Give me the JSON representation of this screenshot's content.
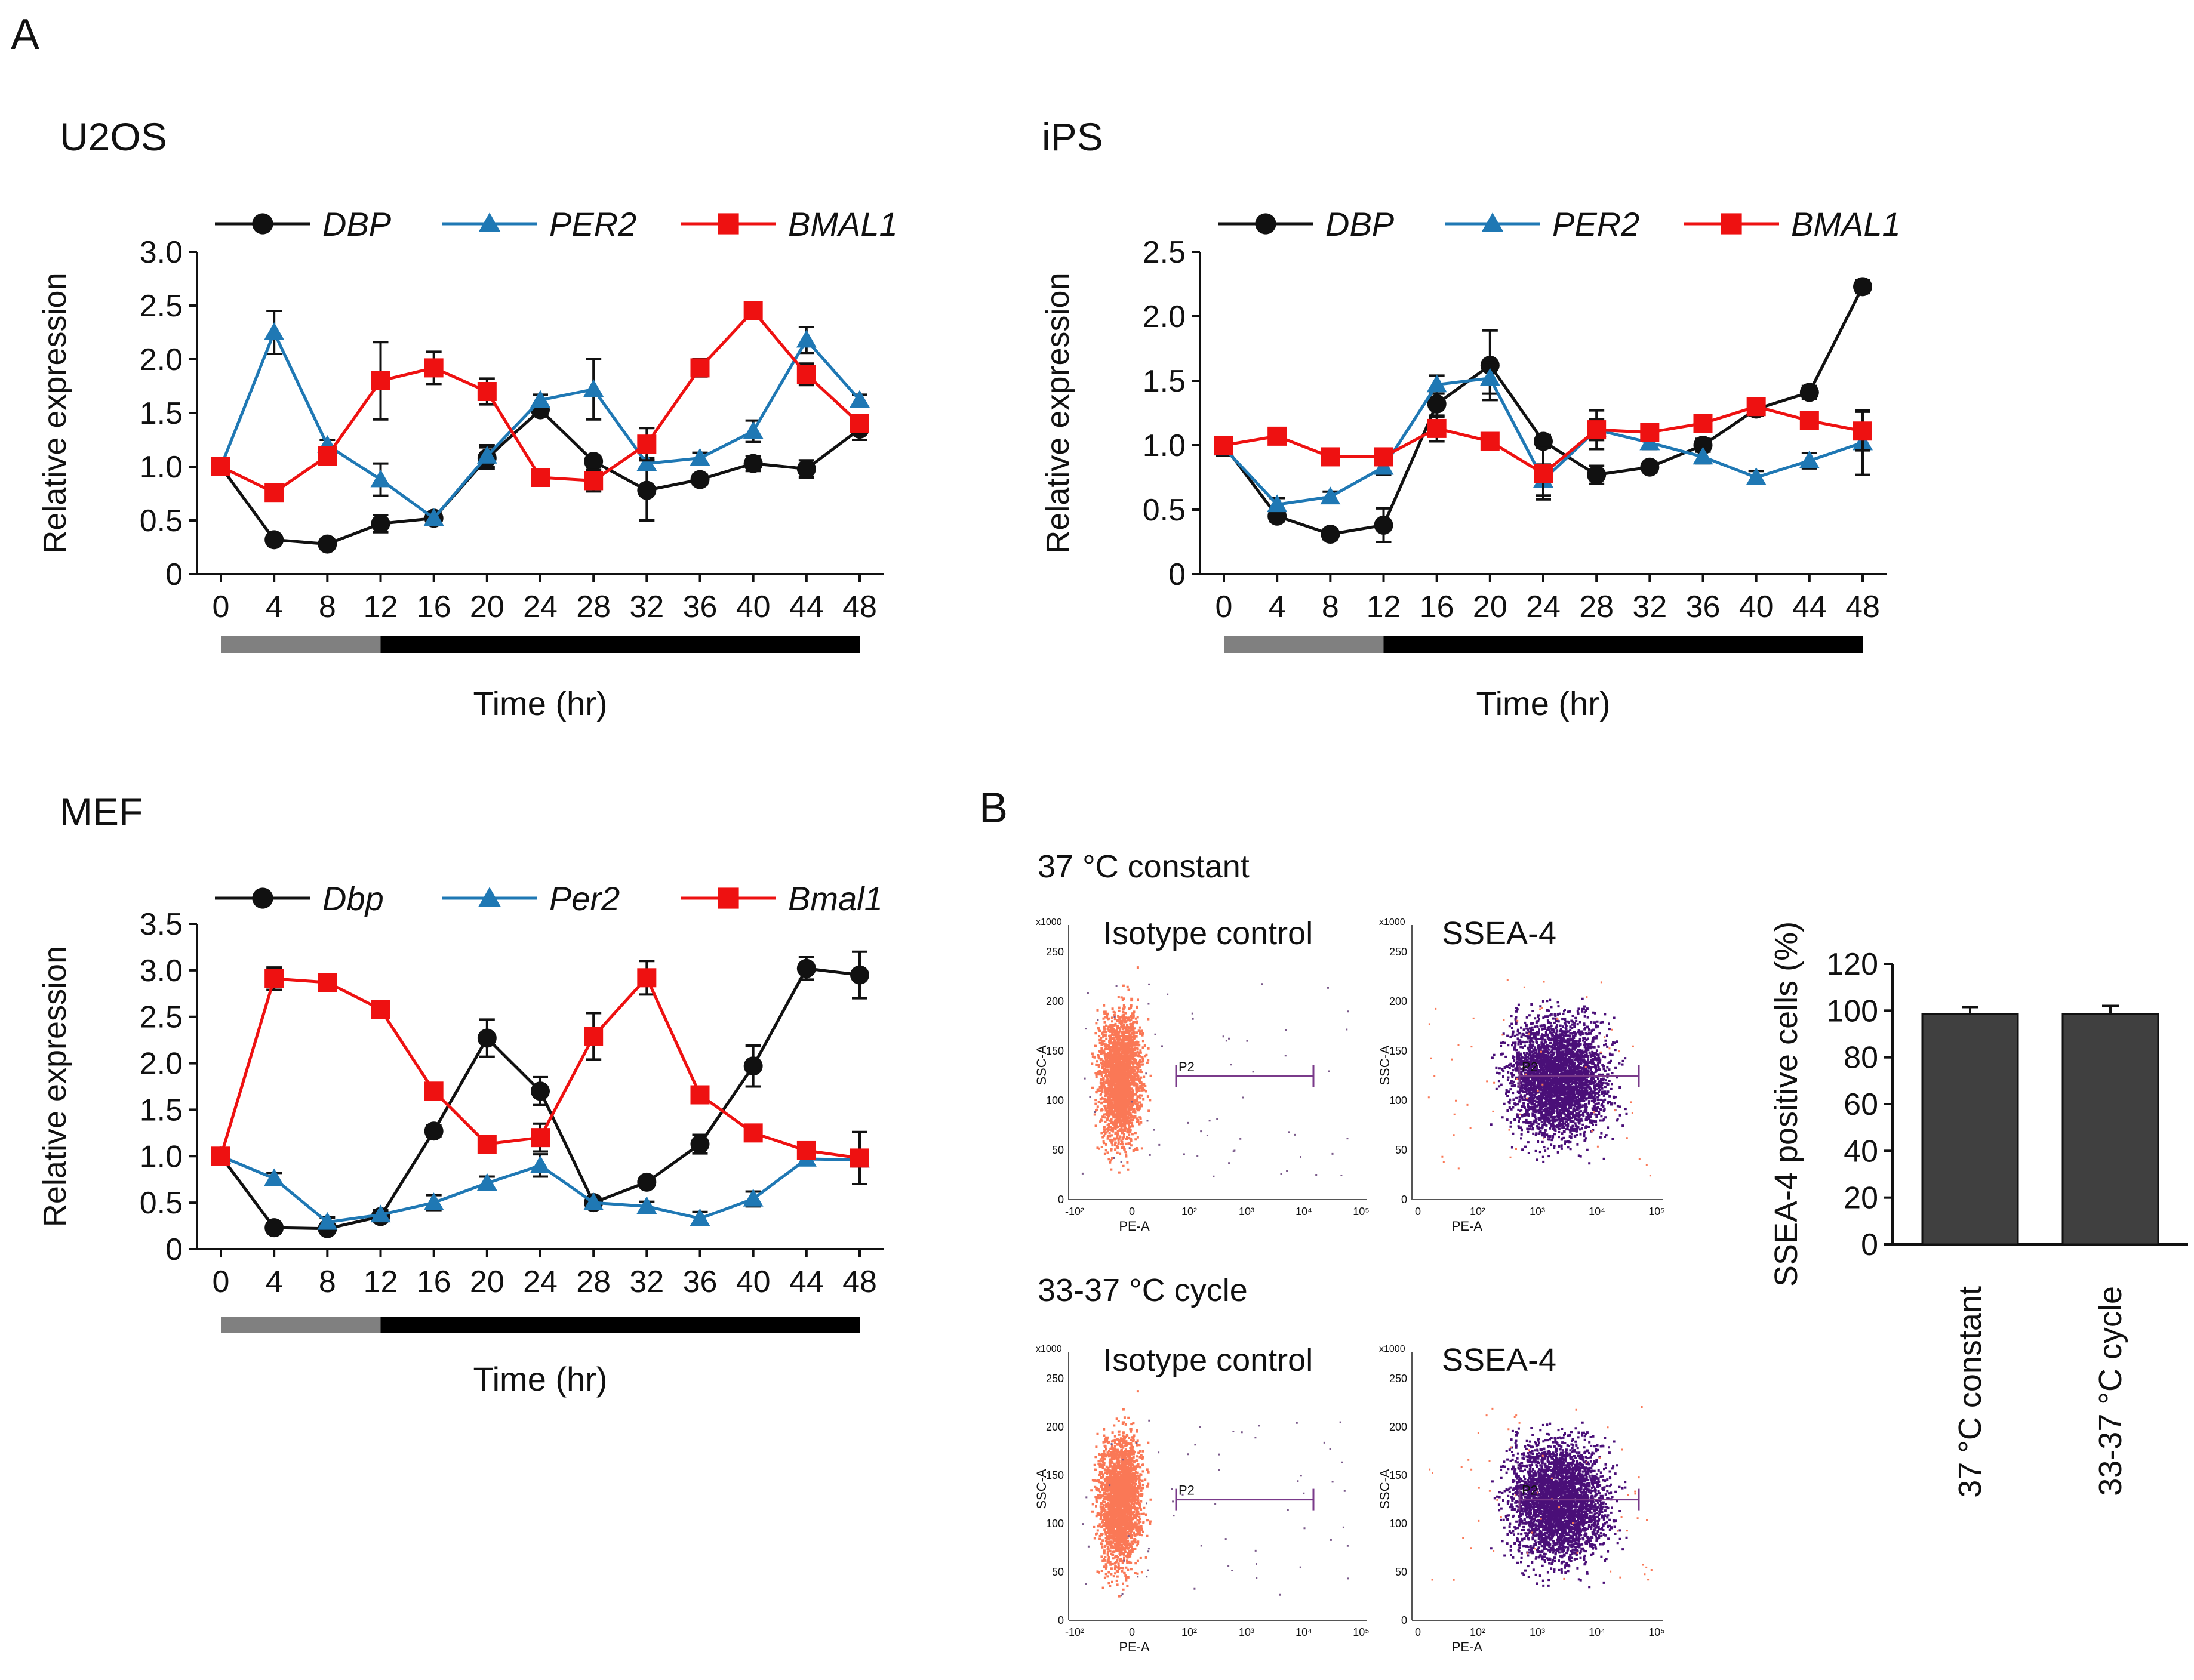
{
  "figure": {
    "panel_a_letter": "A",
    "panel_b_letter": "B",
    "colors": {
      "dbp": "#111111",
      "per2": "#1f78b4",
      "bmal1": "#ee1111",
      "bar": "#404040",
      "light_phase": "#808080",
      "dark_phase": "#000000",
      "isotype_dots": "#fa7856",
      "ssea_dots": "#4a0f78",
      "gate": "#7a3a8a"
    }
  },
  "chart_data": [
    {
      "id": "u2os",
      "type": "line",
      "title": "U2OS",
      "xlabel": "Time (hr)",
      "ylabel": "Relative expression",
      "x": [
        0,
        4,
        8,
        12,
        16,
        20,
        24,
        28,
        32,
        36,
        40,
        44,
        48
      ],
      "ylim": [
        0,
        3.0
      ],
      "yticks": [
        0,
        0.5,
        1.0,
        1.5,
        2.0,
        2.5,
        3.0
      ],
      "ytick_labels": [
        "0",
        "0.5",
        "1.0",
        "1.5",
        "2.0",
        "2.5",
        "3.0"
      ],
      "light_phase_hours": [
        0,
        12
      ],
      "dark_phase_hours": [
        12,
        48
      ],
      "series": [
        {
          "name": "DBP",
          "key": "dbp",
          "marker": "circle",
          "values": [
            1.0,
            0.32,
            0.28,
            0.47,
            0.52,
            1.08,
            1.53,
            1.05,
            0.78,
            0.88,
            1.03,
            0.98,
            1.35
          ],
          "errors": [
            0,
            0.03,
            0.03,
            0.08,
            0.05,
            0.1,
            0.05,
            0.05,
            0.28,
            0.05,
            0.07,
            0.08,
            0.1
          ]
        },
        {
          "name": "PER2",
          "key": "per2",
          "marker": "triangle",
          "values": [
            1.0,
            2.25,
            1.2,
            0.88,
            0.52,
            1.1,
            1.62,
            1.72,
            1.03,
            1.08,
            1.33,
            2.18,
            1.62
          ],
          "errors": [
            0,
            0.2,
            0.05,
            0.15,
            0.05,
            0.1,
            0.05,
            0.28,
            0.05,
            0.05,
            0.1,
            0.12,
            0.05
          ]
        },
        {
          "name": "BMAL1",
          "key": "bmal1",
          "marker": "square",
          "values": [
            1.0,
            0.76,
            1.1,
            1.8,
            1.92,
            1.7,
            0.9,
            0.87,
            1.21,
            1.92,
            2.45,
            1.86,
            1.4
          ],
          "errors": [
            0,
            0.04,
            0.06,
            0.36,
            0.15,
            0.12,
            0.05,
            0.1,
            0.15,
            0.08,
            0.06,
            0.1,
            0.08
          ]
        }
      ]
    },
    {
      "id": "ips",
      "type": "line",
      "title": "iPS",
      "xlabel": "Time (hr)",
      "ylabel": "Relative expression",
      "x": [
        0,
        4,
        8,
        12,
        16,
        20,
        24,
        28,
        32,
        36,
        40,
        44,
        48
      ],
      "ylim": [
        0,
        2.5
      ],
      "yticks": [
        0,
        0.5,
        1.0,
        1.5,
        2.0,
        2.5
      ],
      "ytick_labels": [
        "0",
        "0.5",
        "1.0",
        "1.5",
        "2.0",
        "2.5"
      ],
      "light_phase_hours": [
        0,
        12
      ],
      "dark_phase_hours": [
        12,
        48
      ],
      "series": [
        {
          "name": "DBP",
          "key": "dbp",
          "marker": "circle",
          "values": [
            1.0,
            0.45,
            0.31,
            0.38,
            1.32,
            1.62,
            1.03,
            0.77,
            0.83,
            1.0,
            1.28,
            1.41,
            2.23
          ],
          "errors": [
            0.05,
            0.04,
            0.04,
            0.13,
            0.1,
            0.27,
            0.05,
            0.07,
            0.04,
            0.05,
            0.05,
            0.05,
            0.05
          ]
        },
        {
          "name": "PER2",
          "key": "per2",
          "marker": "triangle",
          "values": [
            0.98,
            0.54,
            0.6,
            0.83,
            1.47,
            1.52,
            0.73,
            1.12,
            1.02,
            0.91,
            0.75,
            0.88,
            1.02
          ],
          "errors": [
            0.06,
            0.05,
            0.04,
            0.06,
            0.07,
            0.12,
            0.12,
            0.08,
            0.05,
            0.05,
            0.05,
            0.06,
            0.25
          ]
        },
        {
          "name": "BMAL1",
          "key": "bmal1",
          "marker": "square",
          "values": [
            1.0,
            1.07,
            0.91,
            0.91,
            1.13,
            1.03,
            0.78,
            1.12,
            1.1,
            1.17,
            1.3,
            1.19,
            1.11
          ],
          "errors": [
            0.06,
            0.06,
            0.04,
            0.05,
            0.1,
            0.05,
            0.2,
            0.15,
            0.06,
            0.05,
            0.06,
            0.06,
            0.15
          ]
        }
      ]
    },
    {
      "id": "mef",
      "type": "line",
      "title": "MEF",
      "xlabel": "Time (hr)",
      "ylabel": "Relative expression",
      "x": [
        0,
        4,
        8,
        12,
        16,
        20,
        24,
        28,
        32,
        36,
        40,
        44,
        48
      ],
      "ylim": [
        0,
        3.5
      ],
      "yticks": [
        0,
        0.5,
        1.0,
        1.5,
        2.0,
        2.5,
        3.0,
        3.5
      ],
      "ytick_labels": [
        "0",
        "0.5",
        "1.0",
        "1.5",
        "2.0",
        "2.5",
        "3.0",
        "3.5"
      ],
      "light_phase_hours": [
        0,
        12
      ],
      "dark_phase_hours": [
        12,
        48
      ],
      "series": [
        {
          "name": "Dbp",
          "key": "dbp",
          "marker": "circle",
          "values": [
            1.0,
            0.23,
            0.22,
            0.35,
            1.27,
            2.27,
            1.7,
            0.5,
            0.72,
            1.13,
            1.97,
            3.02,
            2.95
          ],
          "errors": [
            0,
            0.04,
            0.04,
            0.05,
            0.06,
            0.2,
            0.15,
            0.05,
            0.05,
            0.1,
            0.22,
            0.12,
            0.25
          ]
        },
        {
          "name": "Per2",
          "key": "per2",
          "marker": "triangle",
          "values": [
            1.0,
            0.76,
            0.29,
            0.37,
            0.5,
            0.71,
            0.9,
            0.5,
            0.46,
            0.33,
            0.54,
            0.97,
            0.96
          ],
          "errors": [
            0,
            0.06,
            0.05,
            0.05,
            0.08,
            0.07,
            0.12,
            0.05,
            0.05,
            0.07,
            0.08,
            0.05,
            0.07
          ]
        },
        {
          "name": "Bmal1",
          "key": "bmal1",
          "marker": "square",
          "values": [
            1.0,
            2.91,
            2.87,
            2.58,
            1.7,
            1.13,
            1.2,
            2.29,
            2.92,
            1.66,
            1.25,
            1.06,
            0.98
          ],
          "errors": [
            0,
            0.12,
            0.05,
            0.07,
            0.07,
            0.05,
            0.15,
            0.25,
            0.18,
            0.05,
            0.05,
            0.05,
            0.28
          ]
        }
      ]
    },
    {
      "id": "ssea4",
      "type": "bar",
      "ylabel": "SSEA-4 positive cells (%)",
      "categories": [
        "37 °C constant",
        "33-37 °C cycle"
      ],
      "values": [
        98.5,
        98.5
      ],
      "errors": [
        3,
        3.5
      ],
      "ylim": [
        0,
        120
      ],
      "yticks": [
        0,
        20,
        40,
        60,
        80,
        100,
        120
      ]
    }
  ],
  "flow": {
    "conditions": [
      {
        "label": "37 °C constant",
        "plots": [
          {
            "title": "Isotype control",
            "type": "isotype"
          },
          {
            "title": "SSEA-4",
            "type": "ssea"
          }
        ]
      },
      {
        "label": "33-37 °C cycle",
        "plots": [
          {
            "title": "Isotype control",
            "type": "isotype"
          },
          {
            "title": "SSEA-4",
            "type": "ssea"
          }
        ]
      }
    ],
    "y_unit": "x1000",
    "y_ticks": [
      "250",
      "200",
      "150",
      "100",
      "50",
      "0"
    ],
    "x_ticks_a": [
      "-10²",
      "0",
      "10²",
      "10³",
      "10⁴",
      "10⁵"
    ],
    "x_ticks_b": [
      "0",
      "10²",
      "10³",
      "10⁴",
      "10⁵"
    ],
    "x_label": "PE-A",
    "y_label": "SSC-A",
    "gate_label": "P2"
  }
}
